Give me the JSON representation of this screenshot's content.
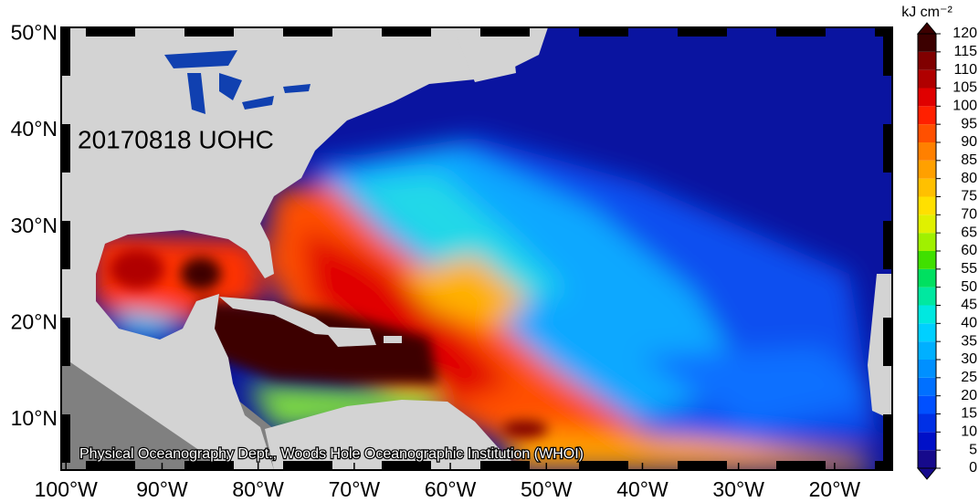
{
  "title": "20170818 UOHC",
  "credit": "Physical Oceanography Dept., Woods Hole Oceanographic Institution (WHOI)",
  "x_axis": {
    "lim": [
      -100.5,
      -14
    ],
    "ticks": [
      {
        "value": -100,
        "label": "100°W"
      },
      {
        "value": -90,
        "label": "90°W"
      },
      {
        "value": -80,
        "label": "80°W"
      },
      {
        "value": -70,
        "label": "70°W"
      },
      {
        "value": -60,
        "label": "60°W"
      },
      {
        "value": -50,
        "label": "50°W"
      },
      {
        "value": -40,
        "label": "40°W"
      },
      {
        "value": -30,
        "label": "30°W"
      },
      {
        "value": -20,
        "label": "20°W"
      }
    ]
  },
  "y_axis": {
    "lim": [
      4.8,
      50.7
    ],
    "ticks": [
      {
        "value": 10,
        "label": "10°N"
      },
      {
        "value": 20,
        "label": "20°N"
      },
      {
        "value": 30,
        "label": "30°N"
      },
      {
        "value": 40,
        "label": "40°N"
      },
      {
        "value": 50,
        "label": "50°N"
      }
    ]
  },
  "colorbar": {
    "unit": "kJ cm⁻²",
    "ticks": [
      0,
      5,
      10,
      15,
      20,
      25,
      30,
      35,
      40,
      45,
      50,
      55,
      60,
      65,
      70,
      75,
      80,
      85,
      90,
      95,
      100,
      105,
      110,
      115,
      120
    ],
    "colors": [
      "#160a8c",
      "#0010c8",
      "#0030e6",
      "#0050ff",
      "#0070ff",
      "#0090ff",
      "#00b0ff",
      "#00d0ff",
      "#00e8e0",
      "#00e8a0",
      "#00e060",
      "#40e000",
      "#a0f000",
      "#e0f000",
      "#ffe000",
      "#ffc000",
      "#ffa000",
      "#ff8000",
      "#ff5000",
      "#ff2000",
      "#e00000",
      "#b00000",
      "#800000",
      "#3c0000"
    ]
  }
}
